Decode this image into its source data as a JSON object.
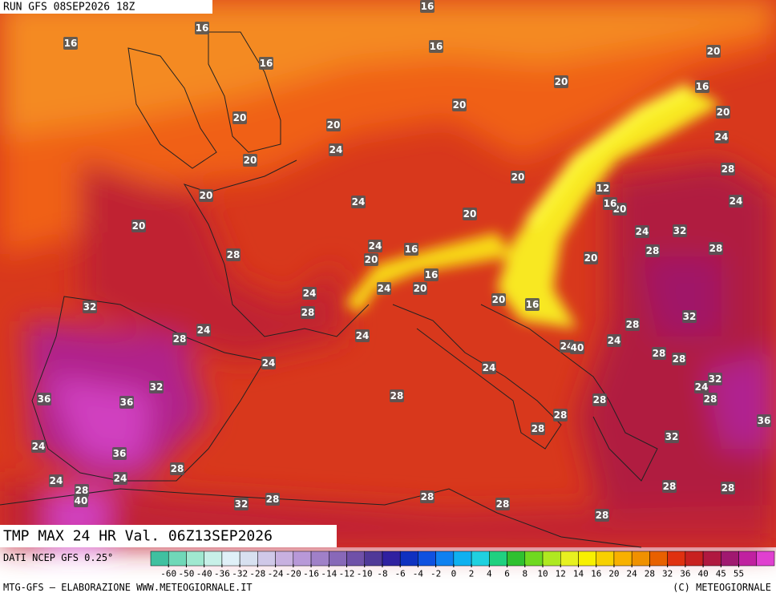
{
  "header": {
    "run": "RUN GFS 08SEP2026 18Z"
  },
  "map": {
    "title": "TMP MAX 24 HR Val. 06Z13SEP2026",
    "labels": [
      16,
      16,
      16,
      16,
      16,
      16,
      20,
      20,
      20,
      20,
      20,
      20,
      20,
      20,
      20,
      20,
      20,
      20,
      20,
      20,
      20,
      20,
      24,
      24,
      24,
      24,
      24,
      24,
      24,
      24,
      24,
      24,
      24,
      24,
      24,
      24,
      24,
      24,
      24,
      24,
      12,
      16,
      16,
      16,
      16,
      28,
      28,
      28,
      28,
      28,
      28,
      28,
      28,
      28,
      28,
      28,
      28,
      28,
      28,
      28,
      28,
      28,
      28,
      28,
      28,
      28,
      28,
      32,
      32,
      32,
      32,
      32,
      32,
      32,
      36,
      36,
      36,
      36,
      40,
      40
    ]
  },
  "footer": {
    "source": "DATI NCEP GFS 0.25°",
    "credit": "MTG-GFS — ELABORAZIONE WWW.METEOGIORNALE.IT",
    "copyright": "(C) METEOGIORNALE"
  },
  "colorbar": {
    "ticks": [
      -60,
      -50,
      -40,
      -36,
      -32,
      -28,
      -24,
      -20,
      -16,
      -14,
      -12,
      -10,
      -8,
      -6,
      -4,
      -2,
      0,
      2,
      4,
      6,
      8,
      10,
      12,
      14,
      16,
      20,
      24,
      28,
      32,
      36,
      40,
      45,
      55
    ],
    "colors": [
      "#40c0a0",
      "#70d8b8",
      "#a0e8d0",
      "#c8f0e8",
      "#e0f0f8",
      "#d8e0f0",
      "#d0c8e8",
      "#c8b0e0",
      "#b898d8",
      "#a080c8",
      "#8868b8",
      "#7050a8",
      "#503898",
      "#3020a0",
      "#1030c0",
      "#1050e0",
      "#1080f0",
      "#10b0f0",
      "#20d0e0",
      "#20d080",
      "#30c030",
      "#70d820",
      "#b0e820",
      "#e8f020",
      "#f8f000",
      "#f8d000",
      "#f8b000",
      "#f09000",
      "#e86000",
      "#e03010",
      "#c82020",
      "#b01840",
      "#a01870",
      "#c020a0",
      "#e040d0"
    ]
  }
}
